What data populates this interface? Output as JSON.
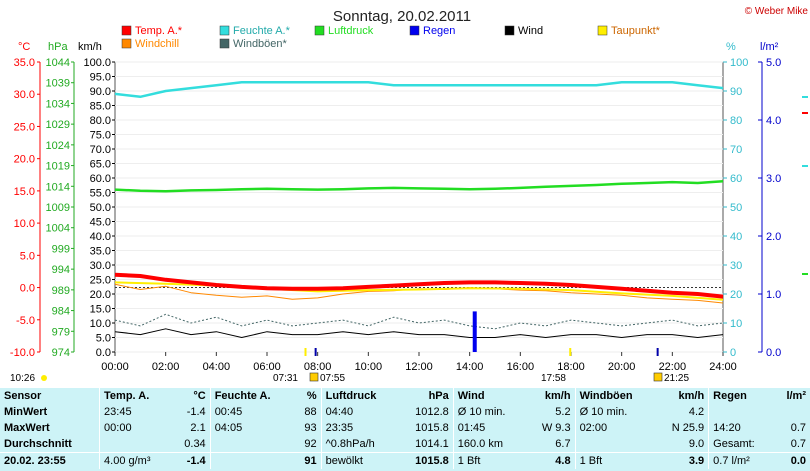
{
  "title": "Sonntag, 20.02.2011",
  "credit": "© Weber Mike",
  "colors": {
    "temp": "#ff0000",
    "humidity": "#33dddd",
    "pressure": "#22dd22",
    "rain": "#0000ee",
    "wind": "#000000",
    "dewpoint": "#ffee00",
    "windchill": "#ff8800",
    "gusts": "#446666",
    "table_bg": "#cdf3f7"
  },
  "axis_units": {
    "temp": "°C",
    "pressure": "hPa",
    "wind": "km/h",
    "humidity": "%",
    "rain": "l/m²"
  },
  "sun": {
    "rise_row": "10:26",
    "sunrise": "07:31",
    "sunrise2": "07:55",
    "sunset1": "17:58",
    "sunset2": "21:25"
  },
  "chart_data": {
    "type": "line",
    "title": "Sonntag, 20.02.2011",
    "x_ticks": [
      "00:00",
      "02:00",
      "04:00",
      "06:00",
      "08:00",
      "10:00",
      "12:00",
      "14:00",
      "16:00",
      "18:00",
      "20:00",
      "22:00",
      "24:00"
    ],
    "x_range": [
      0,
      24
    ],
    "temp_axis": {
      "range": [
        -10,
        35
      ],
      "ticks": [
        "-10.0",
        "-5.0",
        "0.0",
        "5.0",
        "10.0",
        "15.0",
        "20.0",
        "25.0",
        "30.0",
        "35.0"
      ]
    },
    "pressure_axis": {
      "range": [
        974,
        1044
      ],
      "ticks": [
        "974",
        "979",
        "984",
        "989",
        "994",
        "999",
        "1004",
        "1009",
        "1014",
        "1019",
        "1024",
        "1029",
        "1034",
        "1039",
        "1044"
      ]
    },
    "wind_axis": {
      "range": [
        0,
        100
      ],
      "ticks": [
        "0.0",
        "5.0",
        "10.0",
        "15.0",
        "20.0",
        "25.0",
        "30.0",
        "35.0",
        "40.0",
        "45.0",
        "50.0",
        "55.0",
        "60.0",
        "65.0",
        "70.0",
        "75.0",
        "80.0",
        "85.0",
        "90.0",
        "95.0",
        "100.0"
      ]
    },
    "humidity_axis": {
      "range": [
        0,
        100
      ],
      "ticks": [
        "0",
        "10",
        "20",
        "30",
        "40",
        "50",
        "60",
        "70",
        "80",
        "90",
        "100"
      ]
    },
    "rain_axis": {
      "range": [
        0,
        5
      ],
      "ticks": [
        "0.0",
        "1.0",
        "2.0",
        "3.0",
        "4.0",
        "5.0"
      ]
    },
    "legend": [
      {
        "name": "Temp. A.*",
        "color": "#ff0000"
      },
      {
        "name": "Feuchte A.*",
        "color": "#33dddd"
      },
      {
        "name": "Luftdruck",
        "color": "#22dd22"
      },
      {
        "name": "Regen",
        "color": "#0000ee"
      },
      {
        "name": "Wind",
        "color": "#000000"
      },
      {
        "name": "Taupunkt*",
        "color": "#ffee00"
      },
      {
        "name": "Windchill",
        "color": "#ff8800"
      },
      {
        "name": "Windböen*",
        "color": "#446666"
      }
    ],
    "series": [
      {
        "key": "temp",
        "name": "Temp. A.*",
        "axis": "temp",
        "x": [
          0,
          1,
          2,
          3,
          4,
          5,
          6,
          7,
          8,
          9,
          10,
          11,
          12,
          13,
          14,
          15,
          16,
          17,
          18,
          19,
          20,
          21,
          22,
          23,
          24
        ],
        "values": [
          2.0,
          1.8,
          1.2,
          0.8,
          0.4,
          0.1,
          -0.1,
          -0.2,
          -0.2,
          -0.1,
          0.1,
          0.3,
          0.5,
          0.7,
          0.8,
          0.8,
          0.7,
          0.6,
          0.4,
          0.1,
          -0.2,
          -0.5,
          -0.8,
          -1.0,
          -1.4
        ]
      },
      {
        "key": "humidity",
        "name": "Feuchte A.*",
        "axis": "humidity",
        "x": [
          0,
          1,
          2,
          3,
          4,
          5,
          6,
          7,
          8,
          9,
          10,
          11,
          12,
          13,
          14,
          15,
          16,
          17,
          18,
          19,
          20,
          21,
          22,
          23,
          24
        ],
        "values": [
          89,
          88,
          90,
          91,
          92,
          93,
          93,
          93,
          93,
          93,
          93,
          92,
          92,
          92,
          92,
          92,
          92,
          92,
          92,
          92,
          93,
          93,
          93,
          92,
          91
        ]
      },
      {
        "key": "pressure",
        "name": "Luftdruck",
        "axis": "pressure",
        "x": [
          0,
          1,
          2,
          3,
          4,
          5,
          6,
          7,
          8,
          9,
          10,
          11,
          12,
          13,
          14,
          15,
          16,
          17,
          18,
          19,
          20,
          21,
          22,
          23,
          24
        ],
        "values": [
          1013.2,
          1012.9,
          1012.8,
          1013.0,
          1013.1,
          1013.3,
          1013.4,
          1013.3,
          1013.2,
          1013.3,
          1013.5,
          1013.6,
          1013.5,
          1013.4,
          1013.3,
          1013.4,
          1013.6,
          1013.9,
          1014.1,
          1014.3,
          1014.6,
          1014.8,
          1015.0,
          1014.8,
          1015.2
        ]
      },
      {
        "key": "dewpoint",
        "name": "Taupunkt*",
        "axis": "temp",
        "x": [
          0,
          2,
          4,
          6,
          8,
          10,
          12,
          14,
          16,
          18,
          20,
          22,
          24
        ],
        "values": [
          0.8,
          0.6,
          0.3,
          -0.2,
          -0.6,
          -0.4,
          -0.3,
          -0.1,
          -0.2,
          -0.4,
          -0.9,
          -1.3,
          -1.9
        ]
      },
      {
        "key": "windchill",
        "name": "Windchill",
        "axis": "temp",
        "x": [
          0,
          1,
          2,
          3,
          4,
          5,
          6,
          7,
          8,
          9,
          10,
          11,
          12,
          13,
          14,
          15,
          16,
          17,
          18,
          19,
          20,
          21,
          22,
          23,
          24
        ],
        "values": [
          0.5,
          -0.3,
          0.2,
          -0.8,
          -1.2,
          -1.5,
          -1.3,
          -1.8,
          -1.6,
          -1.0,
          -0.6,
          -0.5,
          -0.2,
          -0.3,
          0.0,
          -0.2,
          -0.4,
          -0.5,
          -0.8,
          -1.0,
          -1.2,
          -1.6,
          -1.8,
          -2.0,
          -2.4
        ]
      },
      {
        "key": "gusts",
        "name": "Windböen*",
        "axis": "wind",
        "x": [
          0,
          1,
          2,
          3,
          4,
          5,
          6,
          7,
          8,
          9,
          10,
          11,
          12,
          13,
          14,
          15,
          16,
          17,
          18,
          19,
          20,
          21,
          22,
          23,
          24
        ],
        "values": [
          11,
          9,
          13,
          10,
          12,
          9,
          11,
          9,
          10,
          11,
          9,
          12,
          10,
          11,
          9,
          8,
          10,
          9,
          11,
          10,
          9,
          10,
          11,
          9,
          10
        ]
      },
      {
        "key": "wind",
        "name": "Wind",
        "axis": "wind",
        "x": [
          0,
          1,
          2,
          3,
          4,
          5,
          6,
          7,
          8,
          9,
          10,
          11,
          12,
          13,
          14,
          15,
          16,
          17,
          18,
          19,
          20,
          21,
          22,
          23,
          24
        ],
        "values": [
          7,
          6,
          8,
          6,
          7,
          5,
          7,
          6,
          6,
          7,
          6,
          7,
          6,
          6,
          5,
          5,
          6,
          5,
          6,
          6,
          5,
          6,
          6,
          5,
          6
        ]
      },
      {
        "key": "rain",
        "name": "Regen",
        "axis": "rain",
        "type": "bar",
        "x": [
          14.2
        ],
        "values": [
          0.7
        ]
      }
    ]
  },
  "table": {
    "headers": [
      "Sensor",
      "Temp. A.",
      "°C",
      "Feuchte A.",
      "%",
      "Luftdruck",
      "hPa",
      "Wind",
      "km/h",
      "Windböen",
      "km/h",
      "Regen",
      "l/m²"
    ],
    "rows": [
      [
        "MinWert",
        "23:45",
        "-1.4",
        "00:45",
        "88",
        "04:40",
        "1012.8",
        "Ø 10 min.",
        "5.2",
        "Ø 10 min.",
        "4.2",
        "",
        ""
      ],
      [
        "MaxWert",
        "00:00",
        "2.1",
        "04:05",
        "93",
        "23:35",
        "1015.8",
        "01:45",
        "W 9.3",
        "02:00",
        "N 25.9",
        "14:20",
        "0.7"
      ],
      [
        "Durchschnitt",
        "",
        "0.34",
        "",
        "92",
        "^0.8hPa/h",
        "1014.1",
        "160.0 km",
        "6.7",
        "",
        "9.0",
        "Gesamt:",
        "0.7"
      ],
      [
        "20.02. 23:55",
        "4.00 g/m³",
        "-1.4",
        "",
        "91",
        "bewölkt",
        "1015.8",
        "1 Bft",
        "4.8",
        "1 Bft",
        "3.9",
        "0.7 l/m²",
        "0.0"
      ]
    ]
  }
}
